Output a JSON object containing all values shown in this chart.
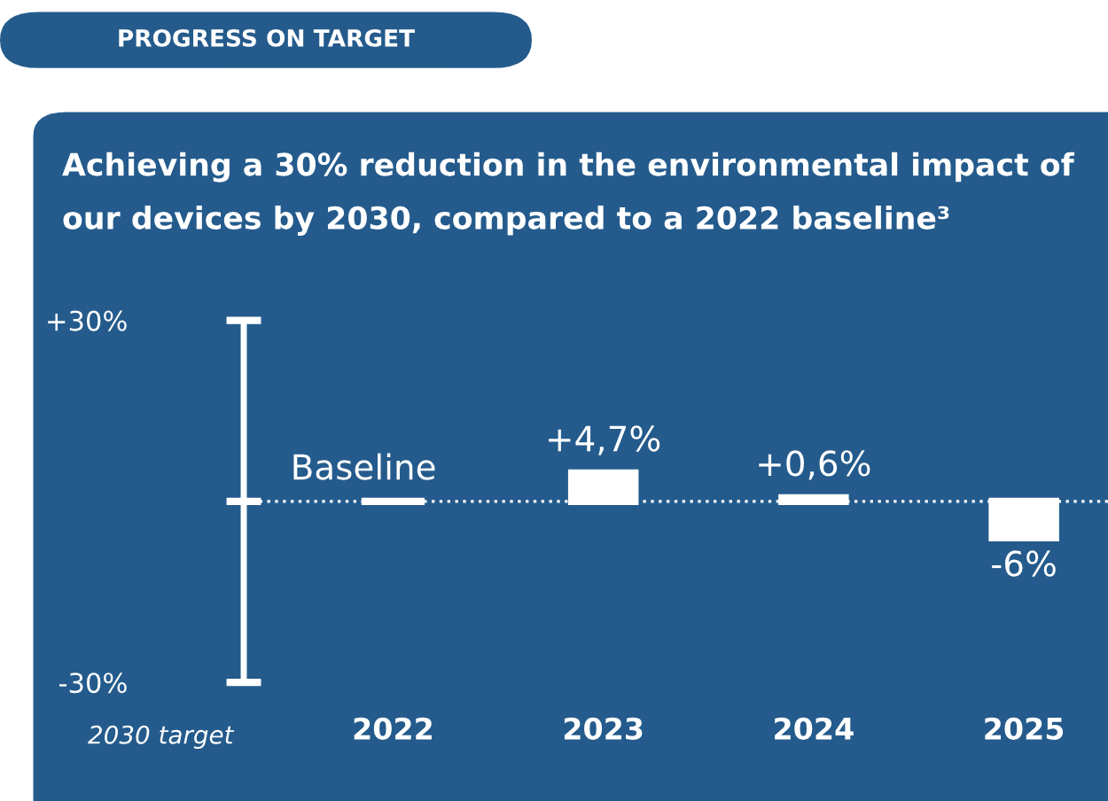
{
  "chart_data": {
    "type": "bar",
    "title": "Achieving a 30% reduction in the environmental impact of our devices by 2030, compared to a 2022 baseline³",
    "annotations": [
      "PROGRESS ON TARGET",
      "2030 target"
    ],
    "categories": [
      "2022",
      "2023",
      "2024",
      "2025"
    ],
    "values": [
      0,
      4.7,
      0.6,
      -6
    ],
    "value_labels": [
      "Baseline",
      "+4,7%",
      "+0,6%",
      "-6%"
    ],
    "color": "#ffffff",
    "ylim": [
      -30,
      30
    ],
    "yticks": [
      {
        "value": -30,
        "label": "-30%"
      },
      {
        "value": 0,
        "label": null
      },
      {
        "value": 30,
        "label": "+30%"
      }
    ],
    "ref_lines": [
      {
        "axis": "y",
        "value": 0,
        "label": null,
        "color": "#ffffff",
        "line_style": "dotted"
      }
    ],
    "grid": false
  }
}
